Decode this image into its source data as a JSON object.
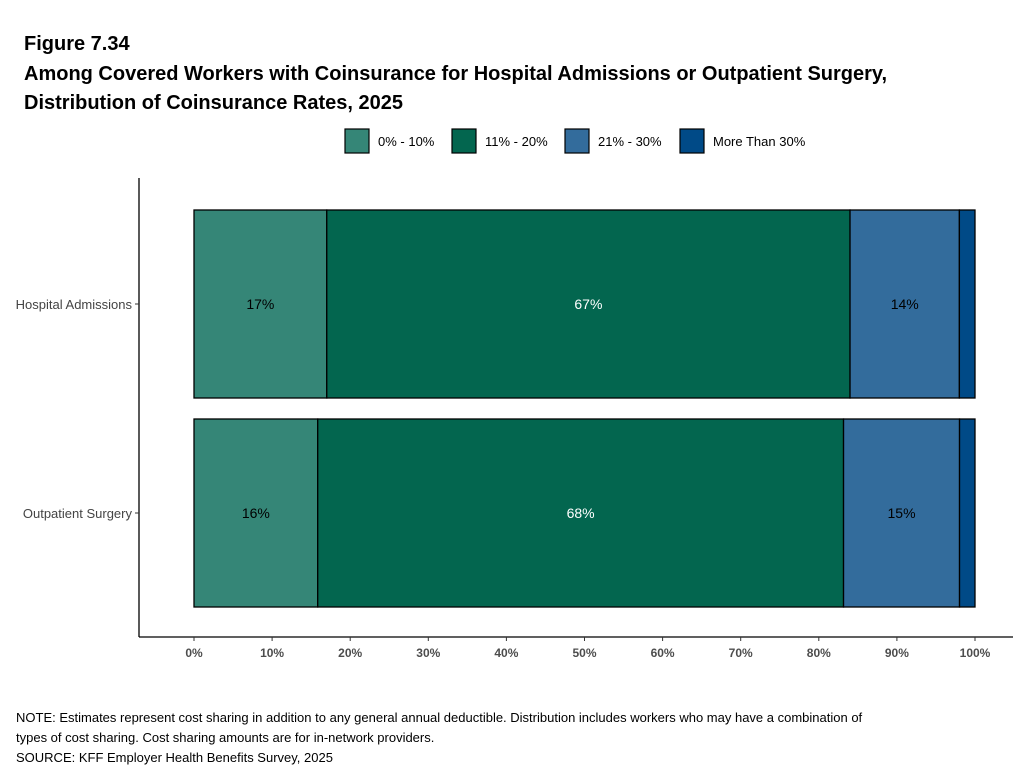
{
  "chart_data": {
    "type": "bar",
    "orientation": "horizontal",
    "stacked": true,
    "figure_label": "Figure 7.34",
    "title_lines": [
      "Among Covered Workers with Coinsurance for Hospital Admissions or Outpatient Surgery,",
      "Distribution of Coinsurance Rates, 2025"
    ],
    "categories": [
      "Hospital Admissions",
      "Outpatient Surgery"
    ],
    "series": [
      {
        "name": "0% - 10%",
        "color": "#358677",
        "label_color": "#000000",
        "values": [
          17,
          16
        ],
        "labels": [
          "17%",
          "16%"
        ]
      },
      {
        "name": "11% - 20%",
        "color": "#03664f",
        "label_color": "#ffffff",
        "values": [
          67,
          68
        ],
        "labels": [
          "67%",
          "68%"
        ]
      },
      {
        "name": "21% - 30%",
        "color": "#336c9c",
        "label_color": "#000000",
        "values": [
          14,
          15
        ],
        "labels": [
          "14%",
          "15%"
        ]
      },
      {
        "name": "More Than 30%",
        "color": "#004a87",
        "label_color": "#ffffff",
        "values": [
          2,
          2
        ],
        "labels": [
          "",
          ""
        ]
      }
    ],
    "xlim": [
      0,
      100
    ],
    "xticks": [
      "0%",
      "10%",
      "20%",
      "30%",
      "40%",
      "50%",
      "60%",
      "70%",
      "80%",
      "90%",
      "100%"
    ],
    "legend": "top",
    "grid": false
  },
  "notes": {
    "line1": "NOTE: Estimates represent cost sharing in addition to any general annual deductible. Distribution includes workers who may have a combination of",
    "line2": "types of cost sharing. Cost sharing amounts are for in-network providers.",
    "source": "SOURCE: KFF Employer Health Benefits Survey, 2025"
  }
}
